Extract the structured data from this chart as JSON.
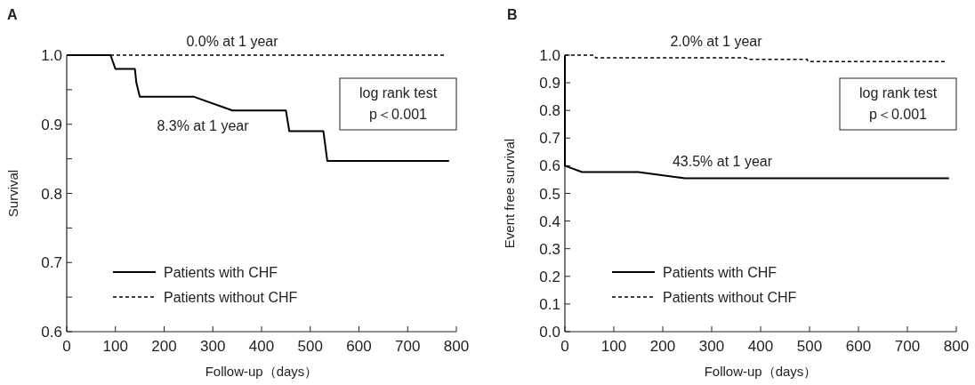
{
  "chart_data": [
    {
      "type": "line",
      "title": "A",
      "xlabel": "Follow-up（days）",
      "ylabel": "Survival",
      "xlim": [
        0,
        800
      ],
      "xticks": [
        0,
        100,
        200,
        300,
        400,
        500,
        600,
        700,
        800
      ],
      "ylim": [
        0.6,
        1.0
      ],
      "yticks": [
        0.6,
        {
          "value": 0.65,
          "label": null
        },
        0.7,
        {
          "value": 0.75,
          "label": null
        },
        0.8,
        {
          "value": 0.85,
          "label": null
        },
        0.9,
        {
          "value": 0.95,
          "label": null
        },
        {
          "value": 1,
          "label": "1.0"
        }
      ],
      "legend": "bottom left",
      "marker": "none",
      "grid": false,
      "series": [
        {
          "name": "Patients with CHF",
          "color": "#000000",
          "line_style": "solid",
          "x": [
            0,
            90,
            100,
            140,
            143,
            150,
            260,
            340,
            450,
            457,
            527,
            535,
            785
          ],
          "values": [
            1.0,
            1.0,
            0.98,
            0.98,
            0.96,
            0.94,
            0.94,
            0.92,
            0.92,
            0.89,
            0.89,
            0.847,
            0.847
          ]
        },
        {
          "name": "Patients without CHF",
          "color": "#000000",
          "line_style": "dashed",
          "x": [
            0,
            778
          ],
          "values": [
            1.0,
            1.0
          ]
        }
      ],
      "annotations": [
        "0.0% at 1 year",
        "8.3% at 1 year",
        "log rank test\np＜0.001"
      ]
    },
    {
      "type": "line",
      "title": "B",
      "xlabel": "Follow-up（days）",
      "ylabel": "Event free survival",
      "xlim": [
        0,
        800
      ],
      "xticks": [
        0,
        100,
        200,
        300,
        400,
        500,
        600,
        700,
        800
      ],
      "ylim": [
        0.0,
        1.0
      ],
      "yticks": [
        {
          "value": 0,
          "label": "0.0"
        },
        0.1,
        0.2,
        0.3,
        0.4,
        0.5,
        0.6,
        0.7,
        0.8,
        0.9,
        {
          "value": 1,
          "label": "1.0"
        }
      ],
      "legend": "bottom left",
      "marker": "none",
      "grid": false,
      "series": [
        {
          "name": "Patients with CHF",
          "color": "#000000",
          "line_style": "solid",
          "x": [
            0,
            0,
            35,
            150,
            245,
            785
          ],
          "values": [
            1.0,
            0.6,
            0.577,
            0.577,
            0.555,
            0.555
          ]
        },
        {
          "name": "Patients without CHF",
          "color": "#000000",
          "line_style": "dashed",
          "x": [
            0,
            60,
            63,
            370,
            373,
            495,
            497,
            777
          ],
          "values": [
            1.0,
            1.0,
            0.99,
            0.99,
            0.985,
            0.985,
            0.977,
            0.977
          ]
        }
      ],
      "annotations": [
        "2.0% at 1 year",
        "43.5% at 1 year",
        "log rank test\np＜0.001"
      ]
    }
  ]
}
